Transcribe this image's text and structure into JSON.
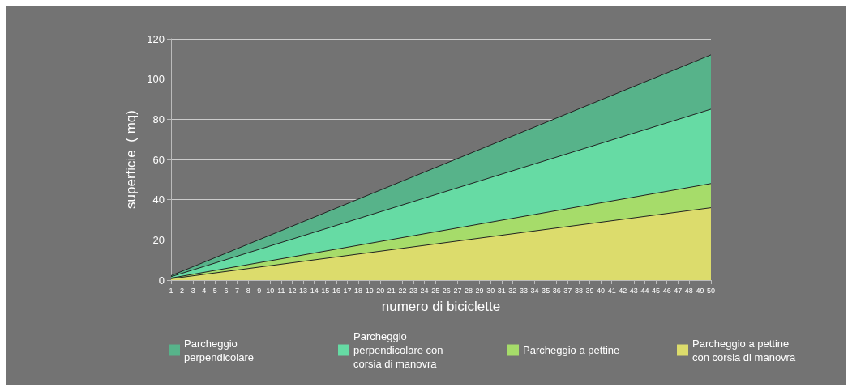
{
  "chart_data": {
    "type": "area",
    "xlabel": "numero di biciclette",
    "ylabel": "superficie  ( mq)",
    "x": [
      1,
      50
    ],
    "xlim": [
      1,
      50
    ],
    "xticks": [
      1,
      2,
      3,
      4,
      5,
      6,
      7,
      8,
      9,
      10,
      11,
      12,
      13,
      14,
      15,
      16,
      17,
      18,
      19,
      20,
      21,
      22,
      23,
      24,
      25,
      26,
      27,
      28,
      29,
      30,
      31,
      32,
      33,
      34,
      35,
      36,
      37,
      38,
      39,
      40,
      41,
      42,
      43,
      44,
      45,
      46,
      47,
      48,
      49,
      50
    ],
    "ylim": [
      0,
      120
    ],
    "yticks": [
      0,
      20,
      40,
      60,
      80,
      100,
      120
    ],
    "grid": "y",
    "legend": "bottom",
    "series": [
      {
        "name": "Parcheggio perpendicolare",
        "color": "#57b38a",
        "values": [
          2.2,
          112
        ]
      },
      {
        "name": "Parcheggio perpendicolare con corsia di manovra",
        "color": "#66dba4",
        "values": [
          1.7,
          85
        ]
      },
      {
        "name": "Parcheggio a pettine",
        "color": "#a6dc6a",
        "values": [
          1.0,
          48
        ]
      },
      {
        "name": "Parcheggio a pettine con corsia di manovra",
        "color": "#dcdc6c",
        "values": [
          0.7,
          36
        ]
      }
    ]
  }
}
